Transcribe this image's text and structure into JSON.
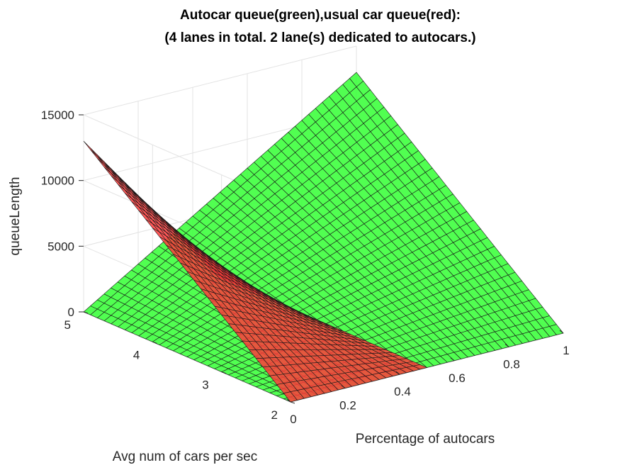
{
  "chart_data": {
    "type": "surface",
    "title": [
      "Autocar queue(green),usual car queue(red):",
      "(4 lanes in total. 2 lane(s) dedicated to autocars.)"
    ],
    "xlabel": "Percentage of autocars",
    "ylabel": "Avg num of cars per sec",
    "zlabel": "queueLength",
    "xlim": [
      0,
      1
    ],
    "ylim": [
      2,
      5
    ],
    "zlim": [
      0,
      15000
    ],
    "x_ticks": [
      "0",
      "0.2",
      "0.4",
      "0.6",
      "0.8",
      "1"
    ],
    "y_ticks": [
      "2",
      "3",
      "4",
      "5"
    ],
    "z_ticks": [
      "0",
      "5000",
      "10000",
      "15000"
    ],
    "grid": true,
    "series": [
      {
        "color": "#ff3b3b",
        "description_of_values": "queue of usual cars over the grid; zero wherever the value would be negative",
        "corner_values": {
          "x0_y2": 0,
          "x0_y5": 13000,
          "x0.5_y2": 0,
          "x0.5_y5": 0
        },
        "domain_x": [
          0,
          0.5
        ]
      },
      {
        "color": "#33ff33",
        "description_of_values": "queue of autocars over the grid",
        "corner_values": {
          "x0_y2": 0,
          "x0_y5": 0,
          "x1_y2": 0,
          "x1_y5": 13000
        }
      }
    ]
  }
}
